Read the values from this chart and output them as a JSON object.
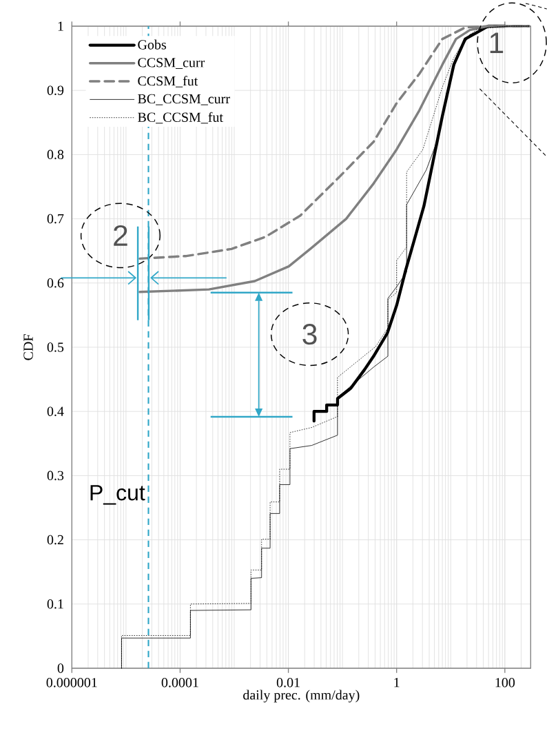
{
  "chart_data": {
    "type": "line",
    "xlabel": "daily prec. (mm/day)",
    "ylabel": "CDF",
    "log": "x",
    "grid": true,
    "legend": "top left",
    "xlim": [
      1e-06,
      300
    ],
    "ylim": [
      0,
      1
    ],
    "xticks": [
      {
        "value": 1e-06,
        "label": "0.000001"
      },
      0.0001,
      0.01,
      1,
      100
    ],
    "yticks": [
      0,
      0.1,
      0.2,
      0.3,
      0.4,
      0.5,
      0.6,
      0.7,
      0.8,
      0.9,
      1
    ],
    "series": [
      {
        "name": "Gobs",
        "color": "#000000",
        "line_style": "solid",
        "x": [
          0.0298,
          0.0298,
          0.051,
          0.051,
          0.081,
          0.081,
          0.142,
          0.255,
          0.376,
          0.675,
          1.0,
          1.47,
          2.17,
          3.2,
          7.0,
          11.4,
          18.5,
          30.1,
          49,
          100
        ],
        "values": [
          0.385,
          0.4,
          0.4,
          0.41,
          0.41,
          0.42,
          0.436,
          0.465,
          0.486,
          0.522,
          0.565,
          0.62,
          0.67,
          0.72,
          0.86,
          0.94,
          0.98,
          0.99,
          1.0,
          1.0
        ]
      },
      {
        "name": "CCSM_curr",
        "color": "#808080",
        "line_style": "solid",
        "x": [
          1.8e-05,
          0.00034,
          0.0024,
          0.0102,
          0.027,
          0.117,
          0.376,
          1.0,
          2.64,
          7.0,
          12.5,
          22.5,
          49,
          280
        ],
        "values": [
          0.586,
          0.59,
          0.603,
          0.626,
          0.655,
          0.7,
          0.755,
          0.808,
          0.869,
          0.94,
          0.98,
          0.994,
          1.0,
          1.0
        ]
      },
      {
        "name": "CCSM_fut",
        "color": "#808080",
        "line_style": "dashed",
        "x": [
          1.8e-05,
          0.00013,
          0.00089,
          0.0038,
          0.0166,
          0.087,
          0.376,
          1.0,
          2.64,
          7.0,
          18.5,
          49,
          280
        ],
        "values": [
          0.638,
          0.642,
          0.653,
          0.672,
          0.705,
          0.765,
          0.82,
          0.88,
          0.926,
          0.98,
          0.998,
          1.0,
          1.0
        ]
      },
      {
        "name": "BC_CCSM_curr",
        "color": "#000000",
        "line_style": "solid",
        "x": [
          8.3e-06,
          8.3e-06,
          0.000155,
          0.000155,
          0.00204,
          0.00204,
          0.0032,
          0.0032,
          0.0046,
          0.0046,
          0.0069,
          0.0069,
          0.0107,
          0.0107,
          0.027,
          0.081,
          0.081,
          0.376,
          0.69,
          0.69,
          1.0,
          1.53,
          1.53,
          3.53,
          5.47,
          8.5,
          13.7,
          22.5,
          49,
          130,
          280
        ],
        "values": [
          0,
          0.047,
          0.047,
          0.09,
          0.091,
          0.14,
          0.141,
          0.187,
          0.187,
          0.241,
          0.241,
          0.286,
          0.286,
          0.342,
          0.347,
          0.363,
          0.422,
          0.469,
          0.486,
          0.576,
          0.594,
          0.617,
          0.722,
          0.776,
          0.819,
          0.898,
          0.958,
          0.987,
          0.998,
          1.0,
          1.0
        ]
      },
      {
        "name": "BC_CCSM_fut",
        "color": "#000000",
        "line_style": "dotted",
        "x": [
          8.3e-06,
          8.3e-06,
          0.000155,
          0.000155,
          0.00204,
          0.00204,
          0.0032,
          0.0032,
          0.0046,
          0.0046,
          0.0069,
          0.0069,
          0.0107,
          0.0107,
          0.027,
          0.081,
          0.081,
          0.41,
          0.69,
          0.69,
          1.0,
          1.0,
          1.53,
          1.53,
          3.06,
          7.0,
          11.4,
          18.5,
          30.1,
          100,
          280
        ],
        "values": [
          0,
          0.051,
          0.051,
          0.1,
          0.101,
          0.153,
          0.153,
          0.201,
          0.201,
          0.259,
          0.259,
          0.31,
          0.31,
          0.367,
          0.375,
          0.392,
          0.453,
          0.501,
          0.53,
          0.574,
          0.585,
          0.635,
          0.656,
          0.773,
          0.808,
          0.905,
          0.951,
          0.98,
          0.995,
          1.0,
          1.0
        ]
      }
    ],
    "ref_lines": [
      {
        "axis": "x",
        "value": 2.6e-05,
        "label": "P_cut",
        "color": "#31a7c7",
        "line_style": "dashed"
      }
    ],
    "annotations": [
      "1",
      {
        "text": "2",
        "x": 1.8e-05,
        "y": 0.586
      },
      {
        "text": "3",
        "x": 0.0298,
        "y": 0.385
      }
    ]
  }
}
